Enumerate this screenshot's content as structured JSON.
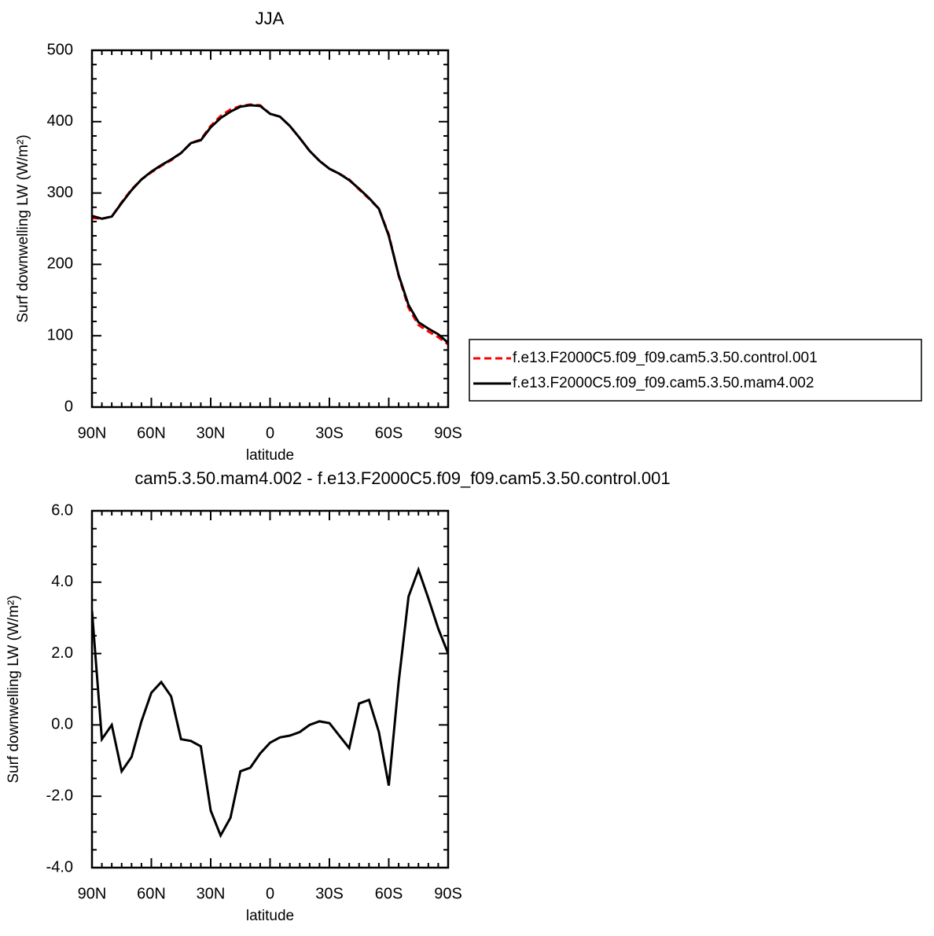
{
  "chart_data": [
    {
      "type": "line",
      "title": "JJA",
      "xlabel": "latitude",
      "ylabel": "Surf downwelling LW (W/m²)",
      "x": [
        90,
        85,
        80,
        75,
        70,
        65,
        60,
        55,
        50,
        45,
        40,
        35,
        30,
        25,
        20,
        15,
        10,
        5,
        0,
        -5,
        -10,
        -15,
        -20,
        -25,
        -30,
        -35,
        -40,
        -45,
        -50,
        -55,
        -60,
        -65,
        -70,
        -75,
        -80,
        -85,
        -90
      ],
      "series": [
        {
          "name": "f.e13.F2000C5.f09_f09.cam5.3.50.control.001",
          "color": "#ff0000",
          "linestyle": "dashed",
          "values": [
            265,
            264,
            267,
            287,
            305,
            319,
            329,
            338,
            346,
            356,
            370,
            375,
            394,
            408,
            417,
            422,
            424,
            423,
            411,
            407,
            394,
            377,
            359,
            345,
            334,
            327,
            319,
            305,
            292,
            278,
            242,
            184,
            139,
            115,
            106,
            98,
            88
          ]
        },
        {
          "name": "f.e13.F2000C5.f09_f09.cam5.3.50.mam4.002",
          "color": "#000000",
          "linestyle": "solid",
          "values": [
            268,
            264,
            267,
            286,
            304,
            319,
            330,
            339,
            347,
            356,
            370,
            374,
            392,
            405,
            414,
            421,
            423,
            422,
            411,
            407,
            394,
            377,
            359,
            345,
            334,
            327,
            318,
            306,
            293,
            278,
            240,
            185,
            143,
            119,
            110,
            102,
            90
          ]
        }
      ],
      "xlim": [
        90,
        -90
      ],
      "xticks": [
        {
          "value": 90,
          "label": "90N"
        },
        {
          "value": 60,
          "label": "60N"
        },
        {
          "value": 30,
          "label": "30N"
        },
        0,
        {
          "value": -30,
          "label": "30S"
        },
        {
          "value": -60,
          "label": "60S"
        },
        {
          "value": -90,
          "label": "90S"
        }
      ],
      "ylim": [
        0,
        500
      ],
      "yticks": [
        0,
        100,
        200,
        300,
        400,
        500
      ],
      "legend": "right"
    },
    {
      "type": "line",
      "title": "cam5.3.50.mam4.002 - f.e13.F2000C5.f09_f09.cam5.3.50.control.001",
      "xlabel": "latitude",
      "ylabel": "Surf downwelling LW (W/m²)",
      "x": [
        90,
        85,
        80,
        75,
        70,
        65,
        60,
        55,
        50,
        45,
        40,
        35,
        30,
        25,
        20,
        15,
        10,
        5,
        0,
        -5,
        -10,
        -15,
        -20,
        -25,
        -30,
        -35,
        -40,
        -45,
        -50,
        -55,
        -60,
        -65,
        -70,
        -75,
        -80,
        -85,
        -90
      ],
      "series": [
        {
          "color": "#000000",
          "linestyle": "solid",
          "values": [
            3.2,
            -0.4,
            0.0,
            -1.3,
            -0.9,
            0.1,
            0.9,
            1.2,
            0.8,
            -0.4,
            -0.45,
            -0.6,
            -2.4,
            -3.1,
            -2.6,
            -1.3,
            -1.2,
            -0.8,
            -0.5,
            -0.35,
            -0.3,
            -0.2,
            0.0,
            0.1,
            0.05,
            -0.3,
            -0.65,
            0.6,
            0.7,
            -0.2,
            -1.7,
            1.2,
            3.6,
            4.35,
            3.55,
            2.7,
            2.0
          ]
        }
      ],
      "xlim": [
        90,
        -90
      ],
      "xticks": [
        {
          "value": 90,
          "label": "90N"
        },
        {
          "value": 60,
          "label": "60N"
        },
        {
          "value": 30,
          "label": "30N"
        },
        0,
        {
          "value": -30,
          "label": "30S"
        },
        {
          "value": -60,
          "label": "60S"
        },
        {
          "value": -90,
          "label": "90S"
        }
      ],
      "ylim": [
        -4,
        6
      ],
      "yticks": [
        {
          "value": -4,
          "label": "-4.0"
        },
        {
          "value": -2,
          "label": "-2.0"
        },
        {
          "value": 0,
          "label": "0.0"
        },
        {
          "value": 2,
          "label": "2.0"
        },
        {
          "value": 4,
          "label": "4.0"
        },
        {
          "value": 6,
          "label": "6.0"
        }
      ]
    }
  ]
}
